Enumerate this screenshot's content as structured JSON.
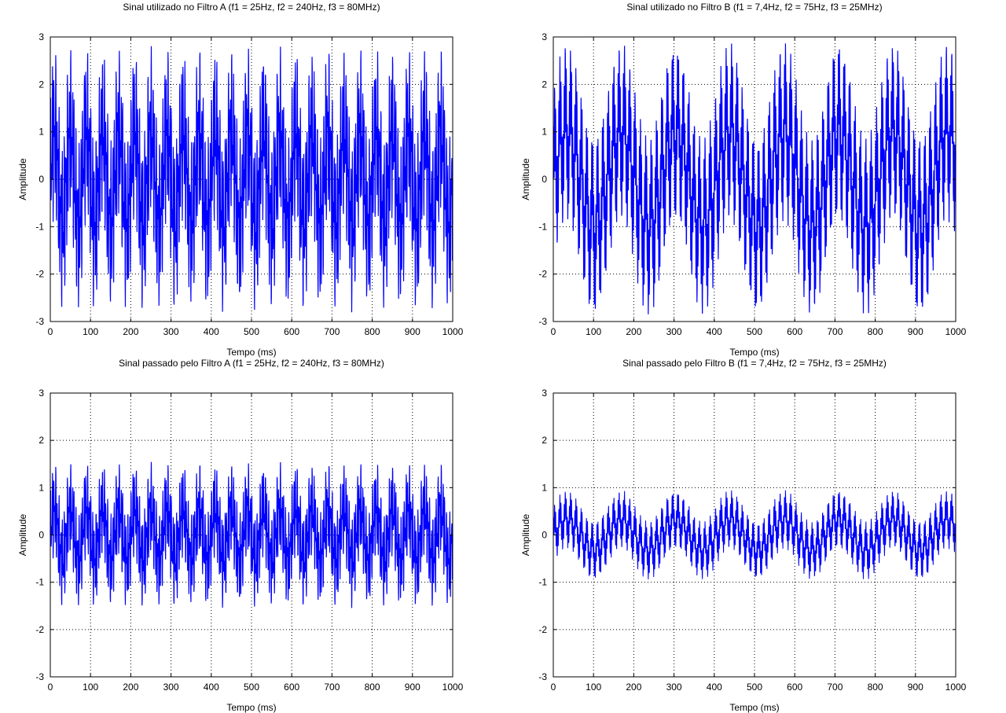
{
  "chart_data": [
    {
      "type": "line",
      "title": "Sinal utilizado no Filtro A (f1 = 25Hz, f2 = 240Hz, f3 = 80MHz)",
      "xlabel": "Tempo (ms)",
      "ylabel": "Amplitude",
      "xlim": [
        0,
        1000
      ],
      "ylim": [
        -3,
        3
      ],
      "xticks": [
        0,
        100,
        200,
        300,
        400,
        500,
        600,
        700,
        800,
        900,
        1000
      ],
      "yticks": [
        -3,
        -2,
        -1,
        0,
        1,
        2,
        3
      ],
      "grid": true,
      "line_color": "#0000ff",
      "signal": {
        "f1_hz": 25,
        "f2_hz": 240,
        "f3": "80MHz",
        "gain": 1.0
      },
      "series": [
        {
          "samples": 2000
        }
      ]
    },
    {
      "type": "line",
      "title": "Sinal utilizado no Filtro B (f1 = 7,4Hz, f2 = 75Hz, f3 = 25MHz)",
      "xlabel": "Tempo (ms)",
      "ylabel": "Amplitude",
      "xlim": [
        0,
        1000
      ],
      "ylim": [
        -3,
        3
      ],
      "xticks": [
        0,
        100,
        200,
        300,
        400,
        500,
        600,
        700,
        800,
        900,
        1000
      ],
      "yticks": [
        -3,
        -2,
        -1,
        0,
        1,
        2,
        3
      ],
      "grid": true,
      "line_color": "#0000ff",
      "signal": {
        "f1_hz": 7.4,
        "f2_hz": 75,
        "f3": "25MHz",
        "gain": 1.0
      },
      "series": [
        {
          "samples": 2000
        }
      ]
    },
    {
      "type": "line",
      "title": "Sinal passado pelo Filtro A (f1 = 25Hz, f2 = 240Hz, f3 = 80MHz)",
      "xlabel": "Tempo (ms)",
      "ylabel": "Amplitude",
      "xlim": [
        0,
        1000
      ],
      "ylim": [
        -3,
        3
      ],
      "xticks": [
        0,
        100,
        200,
        300,
        400,
        500,
        600,
        700,
        800,
        900,
        1000
      ],
      "yticks": [
        -3,
        -2,
        -1,
        0,
        1,
        2,
        3
      ],
      "grid": true,
      "line_color": "#0000ff",
      "signal": {
        "f1_hz": 25,
        "f2_hz": 240,
        "f3": "80MHz",
        "gain": 0.55
      },
      "series": [
        {
          "samples": 2000
        }
      ]
    },
    {
      "type": "line",
      "title": "Sinal passado pelo Filtro B (f1 = 7,4Hz, f2 = 75Hz, f3 = 25MHz)",
      "xlabel": "Tempo (ms)",
      "ylabel": "Amplitude",
      "xlim": [
        0,
        1000
      ],
      "ylim": [
        -3,
        3
      ],
      "xticks": [
        0,
        100,
        200,
        300,
        400,
        500,
        600,
        700,
        800,
        900,
        1000
      ],
      "yticks": [
        -3,
        -2,
        -1,
        0,
        1,
        2,
        3
      ],
      "grid": true,
      "line_color": "#0000ff",
      "signal": {
        "f1_hz": 7.4,
        "f2_hz": 75,
        "f3": "25MHz",
        "gain": 0.33
      },
      "series": [
        {
          "samples": 2000
        }
      ]
    }
  ]
}
